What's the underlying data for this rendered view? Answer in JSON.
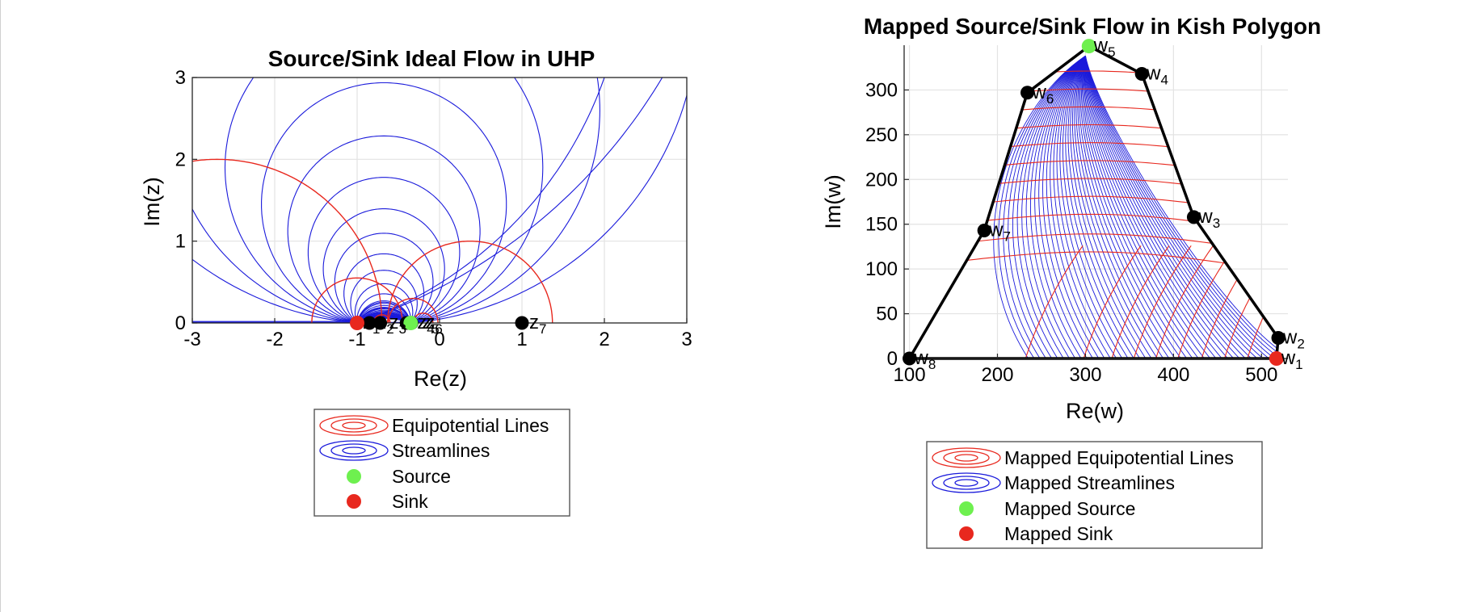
{
  "chart_data": [
    {
      "type": "line",
      "title": "Source/Sink Ideal Flow in UHP",
      "xlabel": "Re(z)",
      "ylabel": "Im(z)",
      "xlim": [
        -3,
        3
      ],
      "ylim": [
        0,
        3
      ],
      "xticks": [
        "-3",
        "-2",
        "-1",
        "0",
        "1",
        "2",
        "3"
      ],
      "yticks": [
        "0",
        "1",
        "2",
        "3"
      ],
      "grid": true,
      "legend_position": "below",
      "colors": {
        "equipotential": "#e8281e",
        "streamline": "#1a1adb",
        "source": "#6ef04f",
        "sink": "#e8281e",
        "prevertex": "#000000"
      },
      "series": [
        {
          "name": "Equipotential Lines",
          "kind": "equipotential"
        },
        {
          "name": "Streamlines",
          "kind": "streamline"
        },
        {
          "name": "Source",
          "kind": "marker"
        },
        {
          "name": "Sink",
          "kind": "marker"
        }
      ],
      "source": [
        -0.35,
        0
      ],
      "sink": [
        -1.0,
        0
      ],
      "prevertices": [
        {
          "label": "z",
          "sub": "1",
          "x": -1.0,
          "y": 0
        },
        {
          "label": "z",
          "sub": "2",
          "x": -0.85,
          "y": 0
        },
        {
          "label": "z",
          "sub": "3",
          "x": -0.72,
          "y": 0
        },
        {
          "label": "z",
          "sub": "4",
          "x": -0.4,
          "y": 0
        },
        {
          "label": "z",
          "sub": "5",
          "x": -0.36,
          "y": 0
        },
        {
          "label": "z",
          "sub": "6",
          "x": -0.34,
          "y": 0
        },
        {
          "label": "z",
          "sub": "7",
          "x": 1.0,
          "y": 0
        }
      ]
    },
    {
      "type": "line",
      "title": "Mapped Source/Sink Flow in Kish Polygon",
      "xlabel": "Re(w)",
      "ylabel": "Im(w)",
      "xlim": [
        94,
        530
      ],
      "ylim": [
        0,
        350
      ],
      "xticks": [
        "100",
        "200",
        "300",
        "400",
        "500"
      ],
      "yticks": [
        "0",
        "50",
        "100",
        "150",
        "200",
        "250",
        "300"
      ],
      "grid": true,
      "legend_position": "below",
      "series": [
        {
          "name": "Mapped Equipotential Lines",
          "kind": "equipotential"
        },
        {
          "name": "Mapped Streamlines",
          "kind": "streamline"
        },
        {
          "name": "Mapped Source",
          "kind": "marker"
        },
        {
          "name": "Mapped Sink",
          "kind": "marker"
        }
      ],
      "vertices": [
        {
          "label": "w",
          "sub": "1",
          "x": 517,
          "y": 0
        },
        {
          "label": "w",
          "sub": "2",
          "x": 519,
          "y": 23
        },
        {
          "label": "w",
          "sub": "3",
          "x": 423,
          "y": 158
        },
        {
          "label": "w",
          "sub": "4",
          "x": 364,
          "y": 318
        },
        {
          "label": "w",
          "sub": "5",
          "x": 304,
          "y": 349
        },
        {
          "label": "w",
          "sub": "6",
          "x": 234,
          "y": 297
        },
        {
          "label": "w",
          "sub": "7",
          "x": 185,
          "y": 143
        },
        {
          "label": "w",
          "sub": "8",
          "x": 100,
          "y": 0
        }
      ],
      "source": [
        304,
        349
      ],
      "sink": [
        517,
        0
      ]
    }
  ]
}
